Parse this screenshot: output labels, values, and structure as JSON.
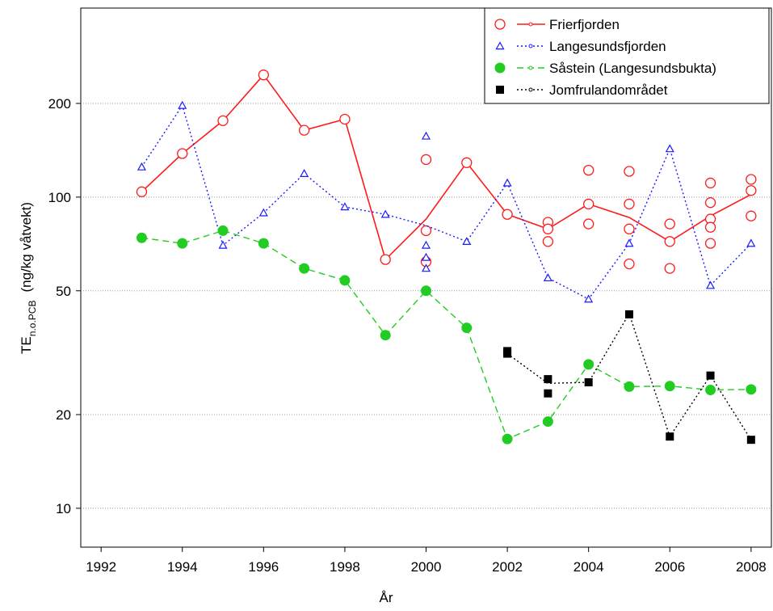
{
  "chart_data": {
    "type": "line",
    "log_y": true,
    "grid": "y",
    "legend": "top-right",
    "x_label": "År",
    "y_label": "TE",
    "y_label_sub": "n.o.PCB",
    "y_label_unit": "(ng/kg våtvekt)",
    "xlim": [
      1991.5,
      2008.5
    ],
    "xticks": [
      1992,
      1994,
      1996,
      1998,
      2000,
      2002,
      2004,
      2006,
      2008
    ],
    "ylim": [
      7.5,
      405
    ],
    "yticks": [
      10,
      20,
      50,
      100,
      200
    ],
    "series": [
      {
        "name": "Frierfjorden",
        "color": "#ff1a1a",
        "marker": "circle-open",
        "dash": "solid",
        "x": [
          1993,
          1994,
          1995,
          1996,
          1997,
          1998,
          1999,
          2000,
          2001,
          2002,
          2003,
          2004,
          2005,
          2006,
          2007,
          2008
        ],
        "values": [
          104,
          138,
          176,
          247,
          164,
          178,
          63,
          85,
          129,
          88,
          79,
          95,
          86,
          72,
          87,
          102
        ],
        "points_x": [
          1993,
          1994,
          1995,
          1996,
          1997,
          1998,
          1999,
          2000,
          2000,
          2000,
          2001,
          2002,
          2003,
          2003,
          2003,
          2004,
          2004,
          2004,
          2005,
          2005,
          2005,
          2005,
          2006,
          2006,
          2006,
          2007,
          2007,
          2007,
          2007,
          2007,
          2008,
          2008,
          2008
        ],
        "points_values": [
          104,
          138,
          176,
          247,
          164,
          178,
          63,
          132,
          78,
          62,
          129,
          88,
          83,
          79,
          72,
          122,
          95,
          82,
          121,
          95,
          79,
          61,
          82,
          59,
          72,
          111,
          96,
          85,
          80,
          71,
          114,
          105,
          87
        ]
      },
      {
        "name": "Langesundsfjorden",
        "color": "#1a1aff",
        "marker": "triangle-open",
        "dash": "dotted",
        "x": [
          1993,
          1994,
          1995,
          1996,
          1997,
          1998,
          1999,
          2000,
          2001,
          2002,
          2003,
          2004,
          2005,
          2006,
          2007,
          2008
        ],
        "values": [
          125,
          197,
          70,
          89,
          119,
          93,
          88,
          81,
          72,
          111,
          55,
          47,
          71,
          143,
          52,
          71
        ],
        "points_x": [
          1993,
          1994,
          1995,
          1996,
          1997,
          1998,
          1999,
          2000,
          2000,
          2000,
          2000,
          2001,
          2002,
          2003,
          2004,
          2005,
          2006,
          2007,
          2008
        ],
        "points_values": [
          125,
          197,
          70,
          89,
          119,
          93,
          88,
          157,
          70,
          64,
          59,
          72,
          111,
          55,
          47,
          71,
          143,
          52,
          71
        ]
      },
      {
        "name": "Såstein (Langesundsbukta)",
        "color": "#22cc22",
        "marker": "circle",
        "dash": "dashed",
        "x": [
          1993,
          1994,
          1995,
          1996,
          1997,
          1998,
          1999,
          2000,
          2001,
          2002,
          2003,
          2004,
          2005,
          2006,
          2007,
          2008
        ],
        "values": [
          74,
          71,
          78,
          71,
          59,
          54,
          36,
          50,
          38,
          16.7,
          19,
          29,
          24.6,
          24.7,
          24,
          24.1
        ],
        "points_x": [
          1993,
          1994,
          1995,
          1996,
          1997,
          1998,
          1999,
          2000,
          2001,
          2002,
          2003,
          2004,
          2005,
          2006,
          2007,
          2008
        ],
        "points_values": [
          74,
          71,
          78,
          71,
          59,
          54,
          36,
          50,
          38,
          16.7,
          19,
          29,
          24.6,
          24.7,
          24,
          24.1
        ]
      },
      {
        "name": "Jomfrulandområdet",
        "color": "#000000",
        "marker": "square",
        "dash": "dotted",
        "x": [
          2002,
          2003,
          2004,
          2005,
          2006,
          2007,
          2008
        ],
        "values": [
          31.4,
          25.2,
          25.4,
          42.2,
          17,
          26.7,
          16.6
        ],
        "points_x": [
          2002,
          2002,
          2003,
          2003,
          2004,
          2005,
          2006,
          2007,
          2008
        ],
        "points_values": [
          32,
          31.4,
          26,
          23.4,
          25.4,
          42,
          17,
          26.7,
          16.6
        ]
      }
    ]
  }
}
